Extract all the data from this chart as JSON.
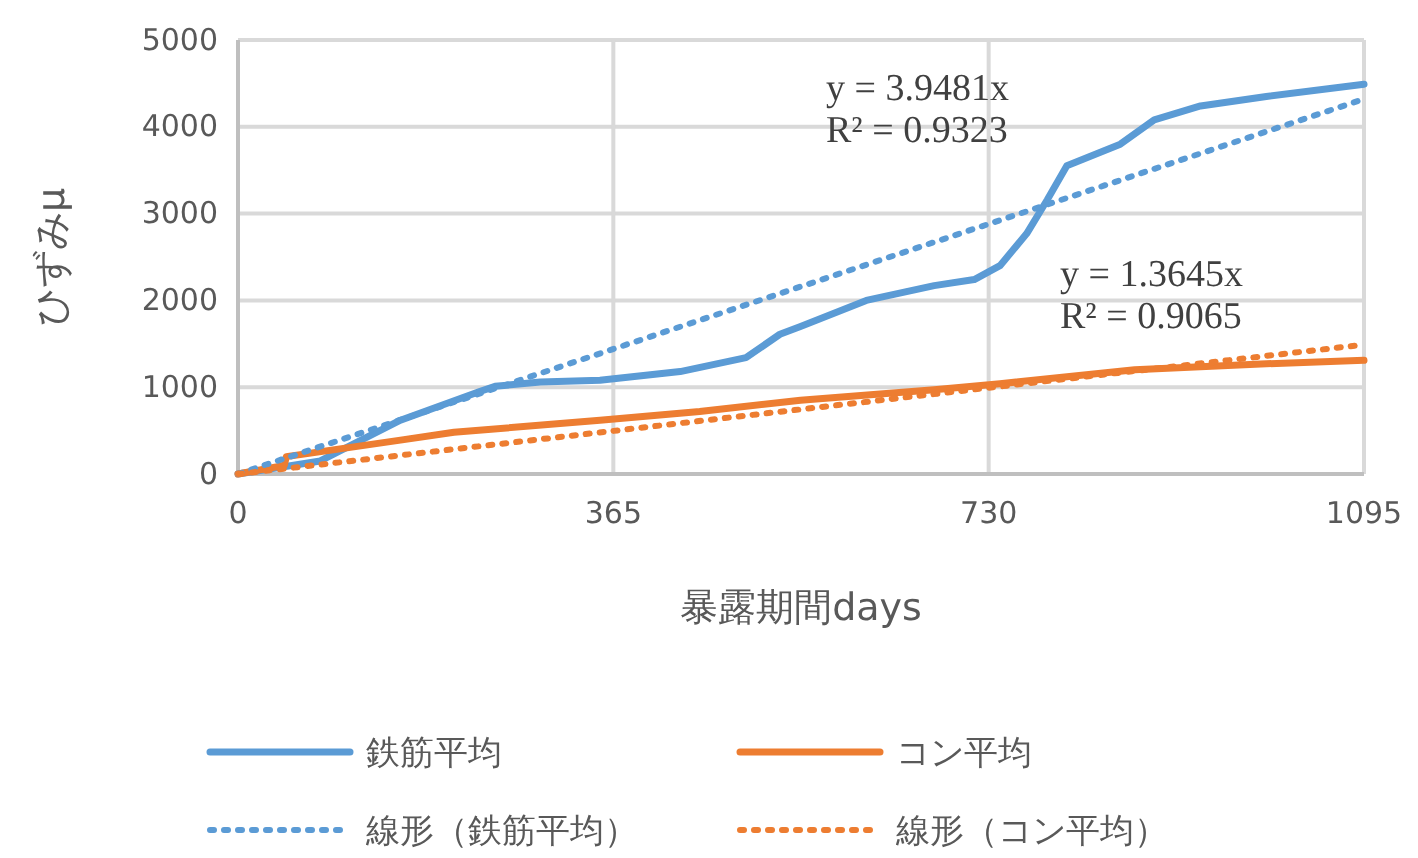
{
  "chart_data": {
    "type": "line",
    "xlabel": "暴露期間days",
    "ylabel": "ひずみμ",
    "xlim": [
      0,
      1095
    ],
    "xticks": [
      0,
      365,
      730,
      1095
    ],
    "ylim": [
      0,
      5000
    ],
    "yticks": [
      0,
      1000,
      2000,
      3000,
      4000,
      5000
    ],
    "grid": true,
    "legend": "bottom",
    "annotations": [
      "y = 3.9481x\nR² = 0.9323",
      "y = 1.3645x\nR² = 0.9065"
    ],
    "series": [
      {
        "name": "鉄筋平均",
        "color": "#5b9bd5",
        "line_style": "solid",
        "x": [
          0,
          80,
          158,
          235,
          250,
          294,
          352,
          430,
          494,
          527,
          547,
          611,
          677,
          716,
          741,
          767,
          787,
          806,
          858,
          891,
          936,
          1000,
          1095
        ],
        "values": [
          0,
          150,
          620,
          950,
          1010,
          1060,
          1080,
          1180,
          1340,
          1610,
          1700,
          2000,
          2170,
          2240,
          2400,
          2770,
          3160,
          3550,
          3800,
          4080,
          4240,
          4350,
          4490
        ]
      },
      {
        "name": "コン平均",
        "color": "#ed7d31",
        "line_style": "solid",
        "x": [
          0,
          45,
          47,
          158,
          210,
          352,
          449,
          547,
          677,
          741,
          872,
          1000,
          1095
        ],
        "values": [
          0,
          100,
          200,
          390,
          480,
          620,
          720,
          850,
          970,
          1040,
          1200,
          1270,
          1310
        ]
      },
      {
        "name": "線形（鉄筋平均）",
        "color": "#5b9bd5",
        "line_style": "dotted",
        "x": [
          0,
          1095
        ],
        "values": [
          0,
          4320
        ]
      },
      {
        "name": "線形（コン平均）",
        "color": "#ed7d31",
        "line_style": "dotted",
        "x": [
          0,
          1095
        ],
        "values": [
          0,
          1490
        ]
      }
    ]
  }
}
